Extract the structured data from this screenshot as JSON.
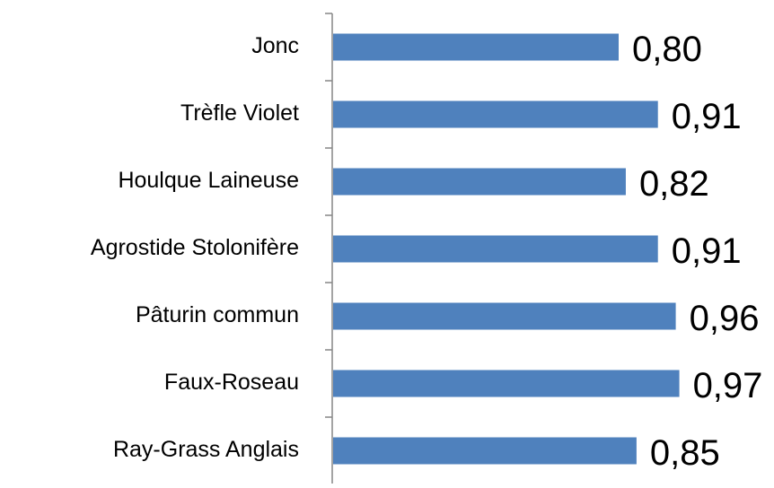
{
  "chart_data": {
    "type": "bar",
    "orientation": "horizontal",
    "categories": [
      "Jonc",
      "Trèfle Violet",
      "Houlque Laineuse",
      "Agrostide Stolonifère",
      "Pâturin commun",
      "Faux-Roseau",
      "Ray-Grass Anglais"
    ],
    "values": [
      0.8,
      0.91,
      0.82,
      0.91,
      0.96,
      0.97,
      0.85
    ],
    "value_labels": [
      "0,80",
      "0,91",
      "0,82",
      "0,91",
      "0,96",
      "0,97",
      "0,85"
    ],
    "color": "#4f81bd"
  }
}
